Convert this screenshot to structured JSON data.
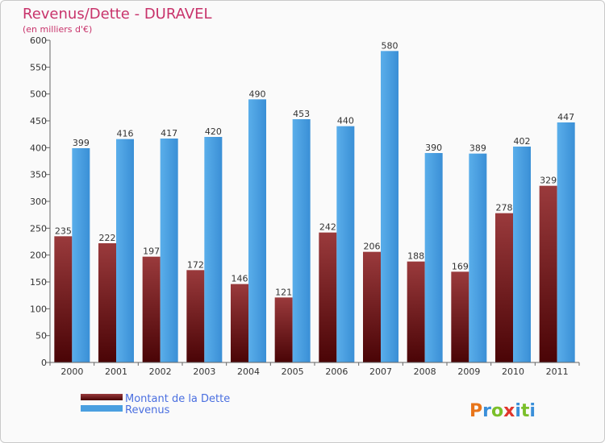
{
  "chart_data": {
    "type": "bar",
    "title": "Revenus/Dette - DURAVEL",
    "subtitle": "(en milliers d'€)",
    "categories": [
      "2000",
      "2001",
      "2002",
      "2003",
      "2004",
      "2005",
      "2006",
      "2007",
      "2008",
      "2009",
      "2010",
      "2011"
    ],
    "series": [
      {
        "name": "Montant de la Dette",
        "color": "#7a1618",
        "values": [
          235,
          222,
          197,
          172,
          146,
          121,
          242,
          206,
          188,
          169,
          278,
          329
        ]
      },
      {
        "name": "Revenus",
        "color": "#4a9fe0",
        "values": [
          399,
          416,
          417,
          420,
          490,
          453,
          440,
          580,
          390,
          389,
          402,
          447
        ]
      }
    ],
    "ylim": [
      0,
      600
    ],
    "yticks": [
      0,
      50,
      100,
      150,
      200,
      250,
      300,
      350,
      400,
      450,
      500,
      550,
      600
    ],
    "grid": false,
    "legend_position": "bottom-left"
  },
  "logo": {
    "text": "Proxiti"
  }
}
